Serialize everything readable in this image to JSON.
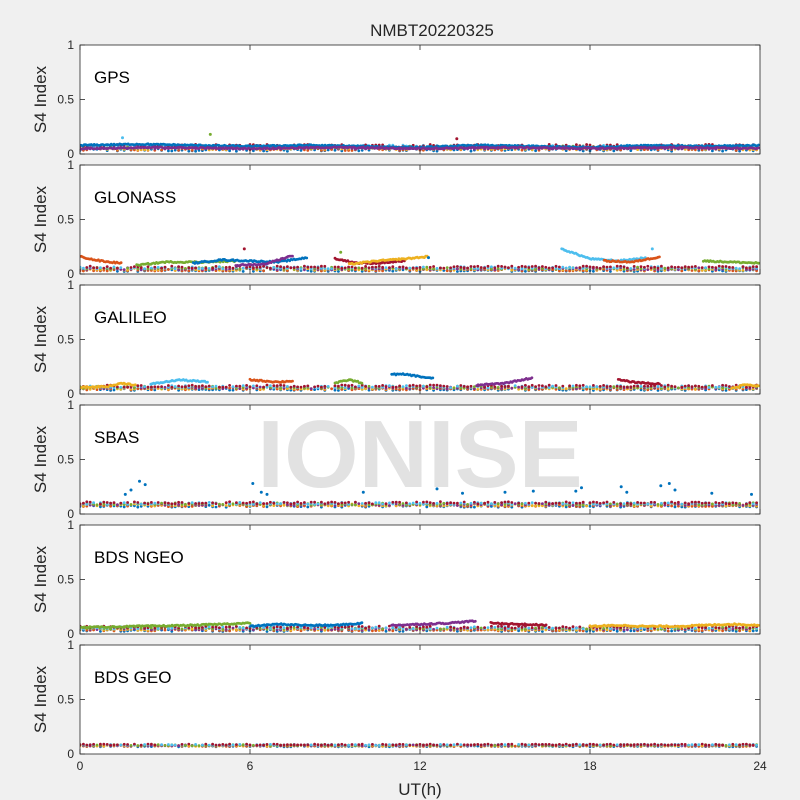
{
  "chart_data": {
    "type": "scatter",
    "title": "NMBT20220325",
    "xlabel": "UT(h)",
    "xlim": [
      0,
      24
    ],
    "x_ticks": [
      "0",
      "6",
      "12",
      "18",
      "24"
    ],
    "ylabel": "S4 Index",
    "ylim": [
      0,
      1
    ],
    "y_ticks": [
      "0",
      "0.5",
      "1"
    ],
    "watermark": "IONISE",
    "series_colors": [
      "#0072bd",
      "#d95319",
      "#edb120",
      "#7e2f8e",
      "#77ac30",
      "#4dbeee",
      "#a2142f"
    ],
    "panels": [
      {
        "label": "GPS",
        "baseline": 0.06,
        "spread": 0.025,
        "tracks": [
          {
            "x": [
              0.0,
              2.0,
              4.0,
              6.0,
              8.0,
              10.0,
              12.0,
              14.0,
              16.0,
              18.0,
              20.0,
              22.0,
              24.0
            ],
            "y": [
              0.08,
              0.09,
              0.08,
              0.07,
              0.08,
              0.07,
              0.06,
              0.08,
              0.07,
              0.06,
              0.08,
              0.07,
              0.08
            ]
          },
          {
            "x": [
              0.0,
              3.0,
              6.0,
              9.0,
              12.0,
              15.0,
              18.0,
              21.0,
              24.0
            ],
            "y": [
              0.05,
              0.06,
              0.05,
              0.06,
              0.05,
              0.06,
              0.05,
              0.06,
              0.05
            ]
          }
        ],
        "spikes": [
          {
            "x": 4.6,
            "y": 0.18
          },
          {
            "x": 1.5,
            "y": 0.15
          },
          {
            "x": 13.3,
            "y": 0.14
          }
        ]
      },
      {
        "label": "GLONASS",
        "baseline": 0.05,
        "spread": 0.02,
        "tracks": [
          {
            "x": [
              0.0,
              0.5,
              1.0,
              1.5
            ],
            "y": [
              0.16,
              0.13,
              0.11,
              0.1
            ]
          },
          {
            "x": [
              2.0,
              3.0,
              4.5,
              5.5
            ],
            "y": [
              0.08,
              0.11,
              0.11,
              0.12
            ]
          },
          {
            "x": [
              4.0,
              5.0,
              6.0,
              7.0,
              8.0
            ],
            "y": [
              0.1,
              0.13,
              0.12,
              0.11,
              0.15
            ]
          },
          {
            "x": [
              5.5,
              6.5,
              7.5
            ],
            "y": [
              0.08,
              0.09,
              0.17
            ]
          },
          {
            "x": [
              9.0,
              9.8,
              10.5,
              11.5
            ],
            "y": [
              0.14,
              0.1,
              0.1,
              0.12
            ]
          },
          {
            "x": [
              9.5,
              10.5,
              11.5,
              12.3
            ],
            "y": [
              0.09,
              0.12,
              0.14,
              0.16
            ]
          },
          {
            "x": [
              17.0,
              18.0,
              19.0,
              20.0
            ],
            "y": [
              0.23,
              0.14,
              0.12,
              0.15
            ]
          },
          {
            "x": [
              18.5,
              19.5,
              20.5
            ],
            "y": [
              0.12,
              0.11,
              0.16
            ]
          },
          {
            "x": [
              22.0,
              23.0,
              24.0
            ],
            "y": [
              0.12,
              0.11,
              0.1
            ]
          }
        ],
        "spikes": [
          {
            "x": 9.2,
            "y": 0.2
          },
          {
            "x": 20.2,
            "y": 0.23
          },
          {
            "x": 5.8,
            "y": 0.23
          },
          {
            "x": 12.3,
            "y": 0.15
          }
        ]
      },
      {
        "label": "GALILEO",
        "baseline": 0.06,
        "spread": 0.02,
        "tracks": [
          {
            "x": [
              0.0,
              1.0,
              1.5,
              2.0
            ],
            "y": [
              0.06,
              0.07,
              0.1,
              0.08
            ]
          },
          {
            "x": [
              2.5,
              3.5,
              4.5
            ],
            "y": [
              0.09,
              0.13,
              0.11
            ]
          },
          {
            "x": [
              6.0,
              7.0,
              7.5
            ],
            "y": [
              0.13,
              0.11,
              0.12
            ]
          },
          {
            "x": [
              9.0,
              9.5,
              10.0
            ],
            "y": [
              0.1,
              0.13,
              0.1
            ]
          },
          {
            "x": [
              11.0,
              11.5,
              12.5
            ],
            "y": [
              0.18,
              0.18,
              0.14
            ]
          },
          {
            "x": [
              14.0,
              15.0,
              16.0
            ],
            "y": [
              0.08,
              0.1,
              0.15
            ]
          },
          {
            "x": [
              19.0,
              19.5,
              20.5
            ],
            "y": [
              0.13,
              0.11,
              0.09
            ]
          },
          {
            "x": [
              23.0,
              23.5,
              24.0
            ],
            "y": [
              0.05,
              0.09,
              0.07
            ]
          }
        ],
        "spikes": []
      },
      {
        "label": "SBAS",
        "baseline": 0.09,
        "spread": 0.02,
        "tracks": [],
        "spikes": [
          {
            "x": 1.8,
            "y": 0.22
          },
          {
            "x": 2.1,
            "y": 0.3
          },
          {
            "x": 2.3,
            "y": 0.27
          },
          {
            "x": 1.6,
            "y": 0.18
          },
          {
            "x": 6.1,
            "y": 0.28
          },
          {
            "x": 6.4,
            "y": 0.2
          },
          {
            "x": 6.6,
            "y": 0.18
          },
          {
            "x": 10.0,
            "y": 0.2
          },
          {
            "x": 12.6,
            "y": 0.23
          },
          {
            "x": 13.5,
            "y": 0.19
          },
          {
            "x": 15.0,
            "y": 0.2
          },
          {
            "x": 16.0,
            "y": 0.21
          },
          {
            "x": 17.5,
            "y": 0.21
          },
          {
            "x": 17.7,
            "y": 0.24
          },
          {
            "x": 19.1,
            "y": 0.25
          },
          {
            "x": 19.3,
            "y": 0.2
          },
          {
            "x": 20.5,
            "y": 0.26
          },
          {
            "x": 20.8,
            "y": 0.28
          },
          {
            "x": 21.0,
            "y": 0.22
          },
          {
            "x": 22.3,
            "y": 0.19
          },
          {
            "x": 23.7,
            "y": 0.18
          }
        ]
      },
      {
        "label": "BDS NGEO",
        "baseline": 0.05,
        "spread": 0.02,
        "tracks": [
          {
            "x": [
              0.0,
              2.0,
              4.0,
              6.0
            ],
            "y": [
              0.06,
              0.07,
              0.08,
              0.1
            ]
          },
          {
            "x": [
              6.0,
              7.0,
              8.0,
              9.0,
              10.0
            ],
            "y": [
              0.07,
              0.09,
              0.08,
              0.08,
              0.1
            ]
          },
          {
            "x": [
              11.0,
              12.0,
              13.0,
              14.0
            ],
            "y": [
              0.08,
              0.09,
              0.1,
              0.12
            ]
          },
          {
            "x": [
              14.5,
              15.5,
              16.5
            ],
            "y": [
              0.1,
              0.09,
              0.08
            ]
          },
          {
            "x": [
              18.0,
              19.0,
              20.0,
              21.0,
              22.0,
              23.0,
              24.0
            ],
            "y": [
              0.07,
              0.08,
              0.07,
              0.07,
              0.08,
              0.09,
              0.08
            ]
          }
        ],
        "spikes": []
      },
      {
        "label": "BDS GEO",
        "baseline": 0.08,
        "spread": 0.01,
        "tracks": [],
        "spikes": []
      }
    ]
  }
}
